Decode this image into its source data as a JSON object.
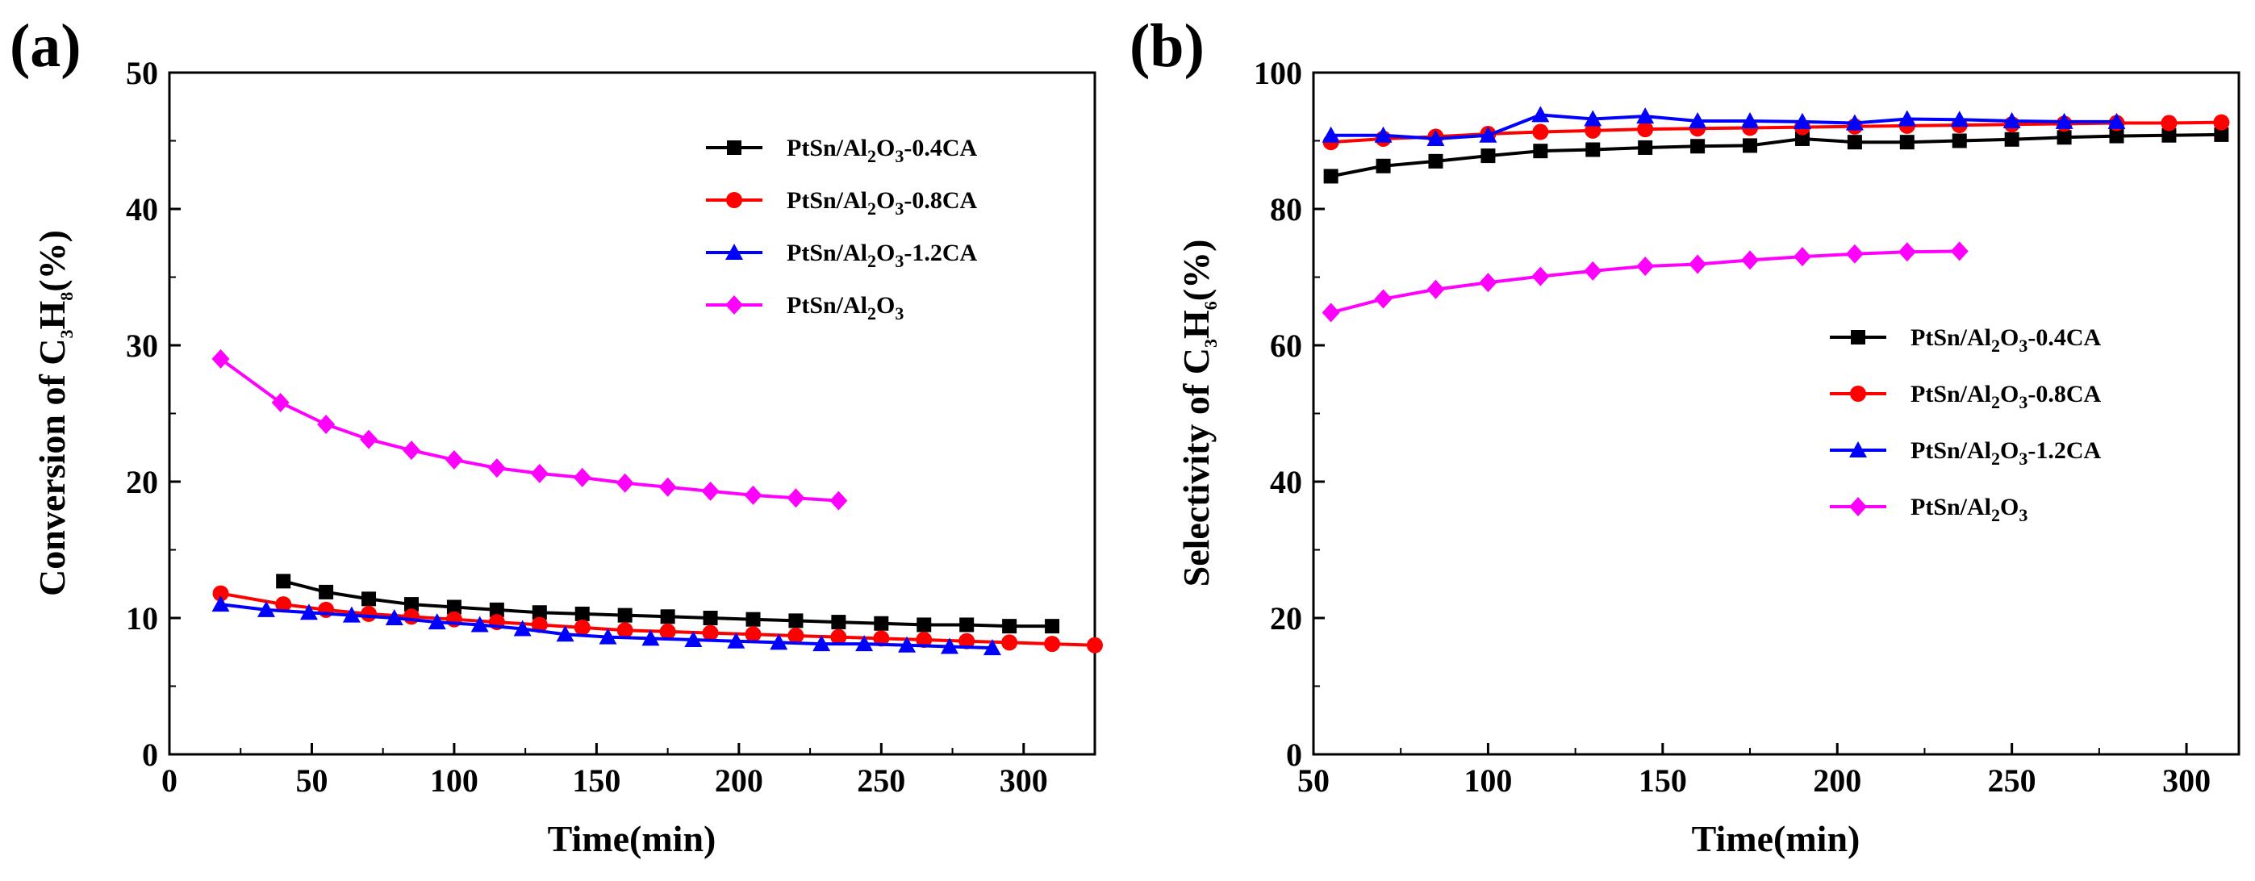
{
  "figure": {
    "panels": [
      "(a)",
      "(b)"
    ]
  },
  "chart_data": [
    {
      "id": "a",
      "type": "line",
      "panel_label": "(a)",
      "title": "",
      "xlabel": "Time(min)",
      "ylabel": "Conversion of C3H8(%)",
      "ylabel_parts": {
        "pre": "Conversion of C",
        "s1": "3",
        "mid": "H",
        "s2": "8",
        "post": "(%)"
      },
      "xlim": [
        0,
        325
      ],
      "ylim": [
        0,
        50
      ],
      "xticks": [
        0,
        50,
        100,
        150,
        200,
        250,
        300
      ],
      "yticks": [
        0,
        10,
        20,
        30,
        40,
        50
      ],
      "grid": false,
      "legend_position": "top-right",
      "series": [
        {
          "name": "PtSn/Al2O3-0.4CA",
          "label_parts": {
            "a": "PtSn/Al",
            "s1": "2",
            "b": "O",
            "s2": "3",
            "c": "-0.4CA"
          },
          "color": "#000000",
          "marker": "square",
          "x": [
            40,
            55,
            70,
            85,
            100,
            115,
            130,
            145,
            160,
            175,
            190,
            205,
            220,
            235,
            250,
            265,
            280,
            295,
            310
          ],
          "y": [
            12.7,
            11.9,
            11.4,
            11.0,
            10.8,
            10.6,
            10.4,
            10.3,
            10.2,
            10.1,
            10.0,
            9.9,
            9.8,
            9.7,
            9.6,
            9.5,
            9.5,
            9.4,
            9.4
          ]
        },
        {
          "name": "PtSn/Al2O3-0.8CA",
          "label_parts": {
            "a": "PtSn/Al",
            "s1": "2",
            "b": "O",
            "s2": "3",
            "c": "-0.8CA"
          },
          "color": "#ff0000",
          "marker": "circle",
          "x": [
            18,
            40,
            55,
            70,
            85,
            100,
            115,
            130,
            145,
            160,
            175,
            190,
            205,
            220,
            235,
            250,
            265,
            280,
            295,
            310,
            325
          ],
          "y": [
            11.8,
            11.0,
            10.6,
            10.3,
            10.1,
            9.9,
            9.7,
            9.5,
            9.3,
            9.1,
            9.0,
            8.9,
            8.8,
            8.7,
            8.6,
            8.5,
            8.4,
            8.3,
            8.2,
            8.1,
            8.0
          ]
        },
        {
          "name": "PtSn/Al2O3-1.2CA",
          "label_parts": {
            "a": "PtSn/Al",
            "s1": "2",
            "b": "O",
            "s2": "3",
            "c": "-1.2CA"
          },
          "color": "#0000ff",
          "marker": "triangle",
          "x": [
            18,
            34,
            49,
            64,
            79,
            94,
            109,
            124,
            139,
            154,
            169,
            184,
            199,
            214,
            229,
            244,
            259,
            274,
            289
          ],
          "y": [
            11.0,
            10.6,
            10.4,
            10.2,
            10.0,
            9.7,
            9.5,
            9.2,
            8.8,
            8.6,
            8.5,
            8.4,
            8.3,
            8.2,
            8.1,
            8.1,
            8.0,
            7.9,
            7.8
          ]
        },
        {
          "name": "PtSn/Al2O3",
          "label_parts": {
            "a": "PtSn/Al",
            "s1": "2",
            "b": "O",
            "s2": "3",
            "c": ""
          },
          "color": "#ff00ff",
          "marker": "diamond",
          "x": [
            18,
            39,
            55,
            70,
            85,
            100,
            115,
            130,
            145,
            160,
            175,
            190,
            205,
            220,
            235
          ],
          "y": [
            29.0,
            25.8,
            24.2,
            23.1,
            22.3,
            21.6,
            21.0,
            20.6,
            20.3,
            19.9,
            19.6,
            19.3,
            19.0,
            18.8,
            18.6
          ]
        }
      ]
    },
    {
      "id": "b",
      "type": "line",
      "panel_label": "(b)",
      "title": "",
      "xlabel": "Time(min)",
      "ylabel": "Selectivity of C3H6(%)",
      "ylabel_parts": {
        "pre": "Selectivity of C",
        "s1": "3",
        "mid": "H",
        "s2": "6",
        "post": "(%)"
      },
      "xlim": [
        50,
        315
      ],
      "ylim": [
        0,
        100
      ],
      "xticks": [
        50,
        100,
        150,
        200,
        250,
        300
      ],
      "yticks": [
        0,
        20,
        40,
        60,
        80,
        100
      ],
      "grid": false,
      "legend_position": "center-right",
      "series": [
        {
          "name": "PtSn/Al2O3-0.4CA",
          "label_parts": {
            "a": "PtSn/Al",
            "s1": "2",
            "b": "O",
            "s2": "3",
            "c": "-0.4CA"
          },
          "color": "#000000",
          "marker": "square",
          "x": [
            55,
            70,
            85,
            100,
            115,
            130,
            145,
            160,
            175,
            190,
            205,
            220,
            235,
            250,
            265,
            280,
            295,
            310
          ],
          "y": [
            84.8,
            86.3,
            87.0,
            87.8,
            88.5,
            88.7,
            89.0,
            89.2,
            89.3,
            90.3,
            89.8,
            89.8,
            90.0,
            90.2,
            90.5,
            90.7,
            90.8,
            90.9
          ]
        },
        {
          "name": "PtSn/Al2O3-0.8CA",
          "label_parts": {
            "a": "PtSn/Al",
            "s1": "2",
            "b": "O",
            "s2": "3",
            "c": "-0.8CA"
          },
          "color": "#ff0000",
          "marker": "circle",
          "x": [
            55,
            70,
            85,
            100,
            115,
            130,
            145,
            160,
            175,
            190,
            205,
            220,
            235,
            250,
            265,
            280,
            295,
            310
          ],
          "y": [
            89.8,
            90.3,
            90.6,
            91.0,
            91.3,
            91.5,
            91.7,
            91.8,
            91.9,
            92.0,
            92.1,
            92.2,
            92.3,
            92.4,
            92.5,
            92.6,
            92.6,
            92.7
          ]
        },
        {
          "name": "PtSn/Al2O3-1.2CA",
          "label_parts": {
            "a": "PtSn/Al",
            "s1": "2",
            "b": "O",
            "s2": "3",
            "c": "-1.2CA"
          },
          "color": "#0000ff",
          "marker": "triangle",
          "x": [
            55,
            70,
            85,
            100,
            115,
            130,
            145,
            160,
            175,
            190,
            205,
            220,
            235,
            250,
            265,
            280
          ],
          "y": [
            90.8,
            90.8,
            90.3,
            90.8,
            93.8,
            93.2,
            93.6,
            92.9,
            92.9,
            92.8,
            92.6,
            93.2,
            93.1,
            92.9,
            92.8,
            92.8
          ]
        },
        {
          "name": "PtSn/Al2O3",
          "label_parts": {
            "a": "PtSn/Al",
            "s1": "2",
            "b": "O",
            "s2": "3",
            "c": ""
          },
          "color": "#ff00ff",
          "marker": "diamond",
          "x": [
            55,
            70,
            85,
            100,
            115,
            130,
            145,
            160,
            175,
            190,
            205,
            220,
            235
          ],
          "y": [
            64.8,
            66.8,
            68.2,
            69.2,
            70.1,
            70.9,
            71.6,
            71.9,
            72.5,
            73.0,
            73.4,
            73.7,
            73.8
          ]
        }
      ]
    }
  ]
}
